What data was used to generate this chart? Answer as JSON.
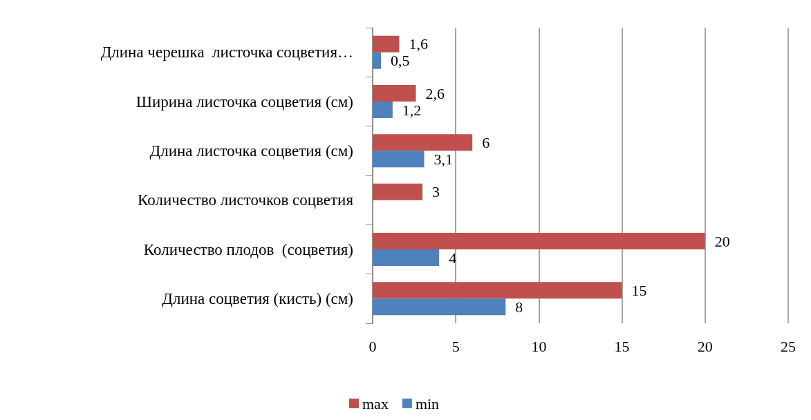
{
  "chart_data": {
    "type": "bar",
    "orientation": "horizontal",
    "categories": [
      "Длина черешка  листочка соцветия…",
      "Ширина листочка соцветия (см)",
      "Длина листочка соцветия (см)",
      "Количество листочков соцветия",
      "Количество плодов  (соцветия)",
      "Длина соцветия (кисть) (см)"
    ],
    "series": [
      {
        "name": "max",
        "color": "#c0504d",
        "values": [
          1.6,
          2.6,
          6,
          3,
          20,
          15
        ],
        "value_labels": [
          "1,6",
          "2,6",
          "6",
          "3",
          "20",
          "15"
        ]
      },
      {
        "name": "min",
        "color": "#4f81bd",
        "values": [
          0.5,
          1.2,
          3.1,
          null,
          4,
          8
        ],
        "value_labels": [
          "0,5",
          "1,2",
          "3,1",
          null,
          "4",
          "8"
        ]
      }
    ],
    "xlim": [
      0,
      25
    ],
    "xticks": [
      0,
      5,
      10,
      15,
      20,
      25
    ],
    "grid": "x",
    "legend": "bottom"
  }
}
